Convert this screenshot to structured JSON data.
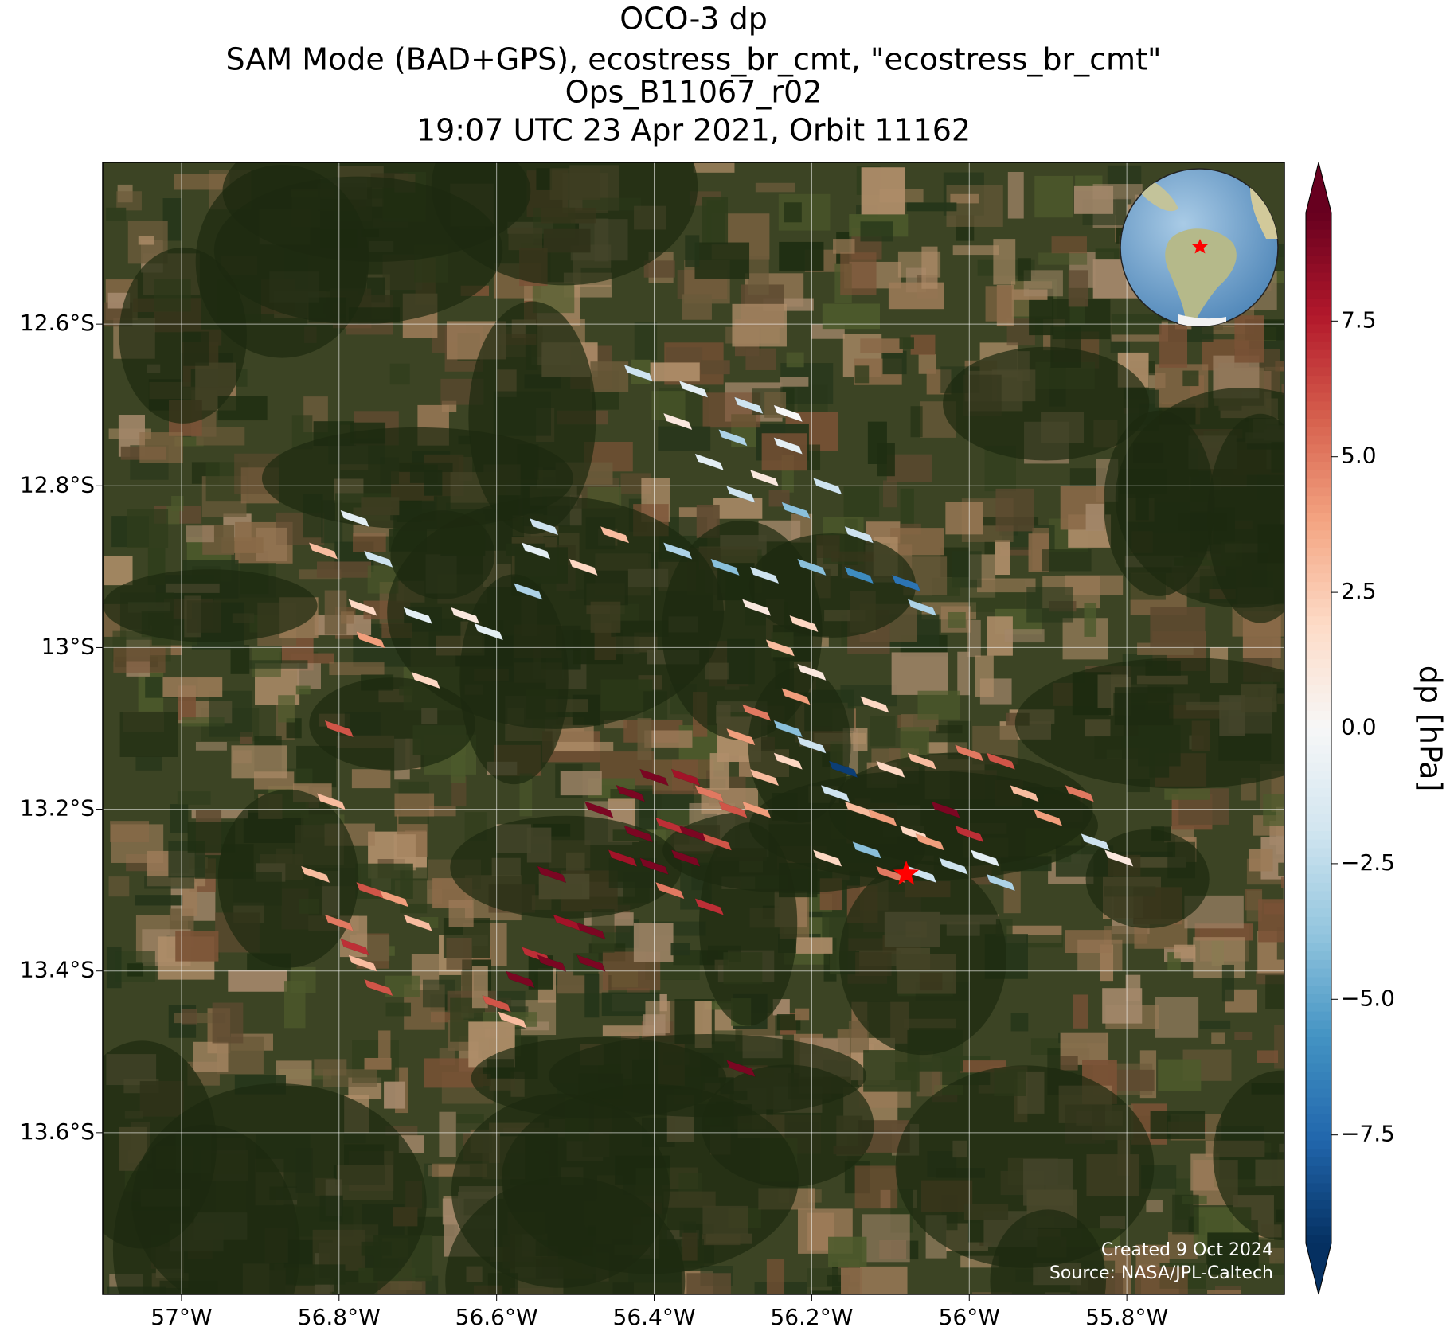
{
  "chart_data": {
    "type": "map",
    "title": [
      "OCO-3 dp",
      "SAM Mode (BAD+GPS), ecostress_br_cmt, \"ecostress_br_cmt\"",
      "Ops_B11067_r02",
      "19:07 UTC 23 Apr 2021, Orbit 11162"
    ],
    "xlim": [
      -57.1,
      -55.6
    ],
    "ylim": [
      -13.8,
      -12.4
    ],
    "xticks": [
      {
        "value": -57,
        "label": "57°W"
      },
      {
        "value": -56.8,
        "label": "56.8°W"
      },
      {
        "value": -56.6,
        "label": "56.6°W"
      },
      {
        "value": -56.4,
        "label": "56.4°W"
      },
      {
        "value": -56.2,
        "label": "56.2°W"
      },
      {
        "value": -56,
        "label": "56°W"
      },
      {
        "value": -55.8,
        "label": "55.8°W"
      }
    ],
    "yticks": [
      {
        "value": -12.6,
        "label": "12.6°S"
      },
      {
        "value": -12.8,
        "label": "12.8°S"
      },
      {
        "value": -13,
        "label": "13°S"
      },
      {
        "value": -13.2,
        "label": "13.2°S"
      },
      {
        "value": -13.4,
        "label": "13.4°S"
      },
      {
        "value": -13.6,
        "label": "13.6°S"
      }
    ],
    "grid": true,
    "colorbar": {
      "label": "dp [hPa]",
      "clim": [
        -9.5,
        9.5
      ],
      "ticks": [
        {
          "value": -7.5,
          "label": "−7.5"
        },
        {
          "value": -5,
          "label": "−5.0"
        },
        {
          "value": -2.5,
          "label": "−2.5"
        },
        {
          "value": 0,
          "label": "0.0"
        },
        {
          "value": 2.5,
          "label": "2.5"
        },
        {
          "value": 5,
          "label": "5.0"
        },
        {
          "value": 7.5,
          "label": "7.5"
        }
      ],
      "colormap": [
        "#053061",
        "#2166ac",
        "#4393c3",
        "#92c5de",
        "#d1e5f0",
        "#f7f7f7",
        "#fddbc7",
        "#f4a582",
        "#d6604d",
        "#b2182b",
        "#67001f"
      ]
    },
    "soundings": {
      "lon": [
        -56.42,
        -56.35,
        -56.28,
        -56.23,
        -56.37,
        -56.3,
        -56.23,
        -56.33,
        -56.26,
        -56.18,
        -56.29,
        -56.22,
        -56.14,
        -56.37,
        -56.31,
        -56.26,
        -56.2,
        -56.14,
        -56.08,
        -56.06,
        -56.27,
        -56.21,
        -56.24,
        -56.2,
        -56.22,
        -56.27,
        -56.23,
        -56.29,
        -56.16,
        -56.2,
        -56.78,
        -56.82,
        -56.75,
        -56.77,
        -56.76,
        -56.7,
        -56.64,
        -56.61,
        -56.69,
        -56.8,
        -56.81,
        -56.54,
        -56.55,
        -56.56,
        -56.49,
        -56.45,
        -56.47,
        -56.43,
        -56.4,
        -56.36,
        -56.33,
        -56.42,
        -56.38,
        -56.35,
        -56.3,
        -56.27,
        -56.44,
        -56.4,
        -56.36,
        -56.32,
        -56.38,
        -56.33,
        -56.26,
        -56.23,
        -56.53,
        -56.51,
        -56.48,
        -56.55,
        -56.57,
        -56.6,
        -56.58,
        -56.53,
        -56.48,
        -56.29,
        -56.83,
        -56.8,
        -56.78,
        -56.76,
        -56.73,
        -56.77,
        -56.75,
        -56.7,
        -56.17,
        -56.14,
        -56.11,
        -56.07,
        -56.13,
        -56.05,
        -56.03,
        -56.0,
        -55.98,
        -56.02,
        -56.06,
        -55.96,
        -56.1,
        -56.18,
        -56.06,
        -56.0,
        -55.96,
        -55.93,
        -55.9,
        -55.86,
        -55.84,
        -55.81,
        -56.1,
        -56.12
      ],
      "lat": [
        -12.66,
        -12.68,
        -12.7,
        -12.71,
        -12.72,
        -12.74,
        -12.75,
        -12.77,
        -12.79,
        -12.8,
        -12.81,
        -12.83,
        -12.86,
        -12.88,
        -12.9,
        -12.91,
        -12.9,
        -12.91,
        -12.92,
        -12.95,
        -12.95,
        -12.97,
        -13.0,
        -13.03,
        -13.06,
        -13.08,
        -13.1,
        -13.11,
        -13.15,
        -13.12,
        -12.84,
        -12.88,
        -12.89,
        -12.95,
        -12.99,
        -12.96,
        -12.96,
        -12.98,
        -13.04,
        -13.1,
        -13.19,
        -12.85,
        -12.88,
        -12.93,
        -12.9,
        -12.86,
        -13.2,
        -13.18,
        -13.16,
        -13.16,
        -13.18,
        -13.23,
        -13.22,
        -13.23,
        -13.2,
        -13.2,
        -13.26,
        -13.27,
        -13.26,
        -13.24,
        -13.3,
        -13.32,
        -13.16,
        -13.14,
        -13.28,
        -13.34,
        -13.35,
        -13.38,
        -13.41,
        -13.44,
        -13.46,
        -13.39,
        -13.39,
        -13.52,
        -13.28,
        -13.34,
        -13.37,
        -13.3,
        -13.31,
        -13.39,
        -13.42,
        -13.34,
        -13.18,
        -13.2,
        -13.21,
        -13.23,
        -13.25,
        -13.24,
        -13.2,
        -13.23,
        -13.26,
        -13.27,
        -13.28,
        -13.29,
        -13.28,
        -13.26,
        -13.14,
        -13.13,
        -13.14,
        -13.18,
        -13.21,
        -13.18,
        -13.24,
        -13.26,
        -13.15,
        -13.07
      ],
      "dp": [
        -2,
        -1,
        -2,
        0,
        1,
        -3,
        -1,
        -1,
        1,
        -2,
        -2,
        -4,
        -2,
        -3,
        -4,
        -2,
        -4,
        -6,
        -7,
        -3,
        1,
        2,
        3,
        1,
        4,
        5,
        -4,
        4,
        -9,
        -2,
        -1,
        3,
        -2,
        2,
        4,
        -1,
        1,
        -1,
        2,
        6,
        3,
        -2,
        -1,
        -3,
        2,
        3,
        9,
        9,
        9,
        8,
        5,
        9,
        7,
        9,
        6,
        4,
        8,
        9,
        9,
        6,
        5,
        7,
        3,
        2,
        9,
        8,
        9,
        7,
        9,
        6,
        3,
        9,
        9,
        9,
        3,
        5,
        7,
        6,
        4,
        3,
        6,
        3,
        -2,
        3,
        4,
        2,
        -4,
        4,
        9,
        7,
        -1,
        -2,
        -2,
        -3,
        5,
        2,
        3,
        5,
        6,
        3,
        4,
        5,
        -2,
        1,
        2,
        2
      ]
    },
    "target": {
      "lon": -56.08,
      "lat": -13.28
    },
    "credits": [
      "Created 9 Oct 2024",
      "Source: NASA/JPL-Caltech"
    ]
  }
}
